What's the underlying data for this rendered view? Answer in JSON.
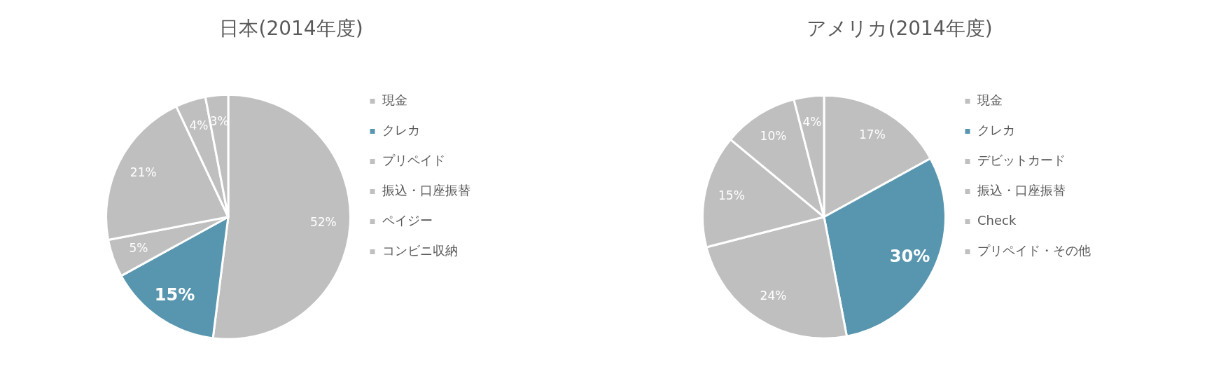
{
  "chart_data": [
    {
      "type": "pie",
      "title": "日本(2014年度)",
      "categories": [
        "現金",
        "クレカ",
        "プリペイド",
        "振込・口座振替",
        "ペイジー",
        "コンビニ収納"
      ],
      "values": [
        52,
        15,
        5,
        21,
        4,
        3
      ],
      "value_labels": [
        "52%",
        "15%",
        "5%",
        "21%",
        "4%",
        "3%"
      ],
      "colors": [
        "#bfbfbf",
        "#5896af",
        "#bfbfbf",
        "#bfbfbf",
        "#bfbfbf",
        "#bfbfbf"
      ],
      "legend": "right"
    },
    {
      "type": "pie",
      "title": "アメリカ(2014年度)",
      "categories": [
        "現金",
        "クレカ",
        "デビットカード",
        "振込・口座振替",
        "Check",
        "プリペイド・その他"
      ],
      "values": [
        17,
        30,
        24,
        15,
        10,
        4
      ],
      "value_labels": [
        "17%",
        "30%",
        "24%",
        "15%",
        "10%",
        "4%"
      ],
      "colors": [
        "#bfbfbf",
        "#5896af",
        "#bfbfbf",
        "#bfbfbf",
        "#bfbfbf",
        "#bfbfbf"
      ],
      "legend": "right"
    }
  ]
}
